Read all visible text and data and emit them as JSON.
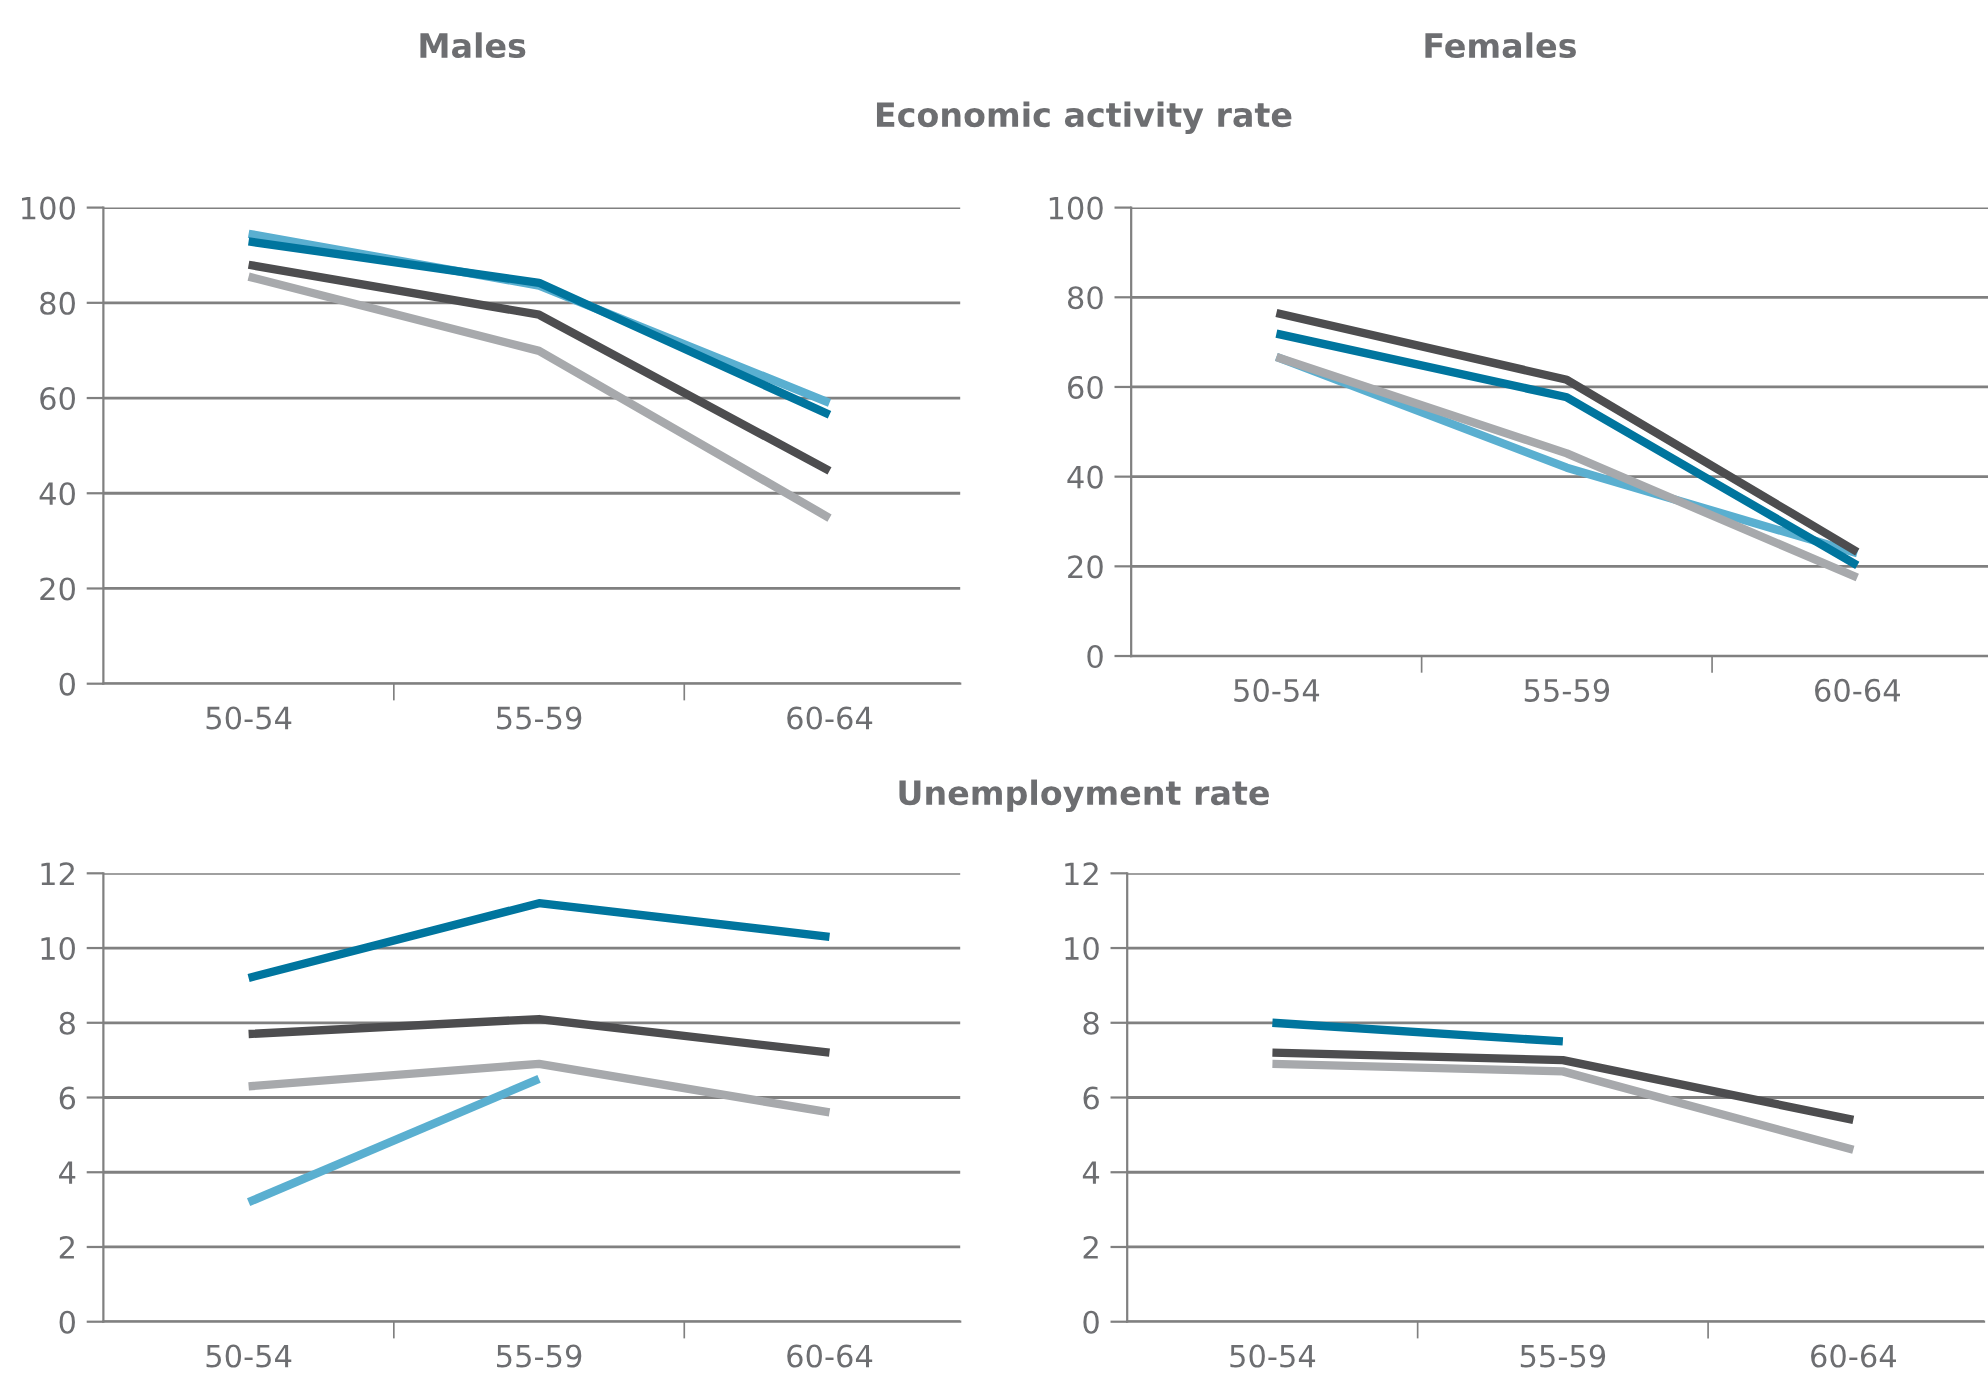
{
  "chart_data": [
    {
      "type": "line",
      "title": "Males",
      "subtitle": "Economic activity rate",
      "categories": [
        "50-54",
        "55-59",
        "60-64"
      ],
      "ylim": [
        0,
        100
      ],
      "yticks": [
        0,
        20,
        40,
        60,
        80,
        100
      ],
      "grid": "y",
      "legend": false,
      "series": [
        {
          "color": "#5aafd0",
          "values": [
            94.5,
            83.6,
            59
          ]
        },
        {
          "color": "#00759e",
          "values": [
            92.9,
            84.2,
            56.5
          ]
        },
        {
          "color": "#4d4d4f",
          "values": [
            88,
            77.5,
            44.7
          ]
        },
        {
          "color": "#a7a9ac",
          "values": [
            85.5,
            69.9,
            34.8
          ]
        }
      ]
    },
    {
      "type": "line",
      "title": "Females",
      "categories": [
        "50-54",
        "55-59",
        "60-64"
      ],
      "ylim": [
        0,
        100
      ],
      "yticks": [
        0,
        20,
        40,
        60,
        80,
        100
      ],
      "grid": "y",
      "legend": false,
      "series": [
        {
          "color": "#5aafd0",
          "values": [
            66.7,
            42,
            22.9
          ]
        },
        {
          "color": "#00759e",
          "values": [
            71.9,
            57.7,
            20.2
          ]
        },
        {
          "color": "#4d4d4f",
          "values": [
            76.5,
            61.6,
            23.2
          ]
        },
        {
          "color": "#a7a9ac",
          "values": [
            66.7,
            45.2,
            17.5
          ]
        }
      ]
    },
    {
      "type": "line",
      "subtitle": "Unemployment rate",
      "categories": [
        "50-54",
        "55-59",
        "60-64"
      ],
      "ylim": [
        0,
        12
      ],
      "yticks": [
        0,
        2,
        4,
        6,
        8,
        10,
        12
      ],
      "grid": "y",
      "legend": false,
      "series": [
        {
          "color": "#5aafd0",
          "values": [
            3.2,
            6.5,
            null
          ]
        },
        {
          "color": "#00759e",
          "values": [
            9.2,
            11.2,
            10.3
          ]
        },
        {
          "color": "#4d4d4f",
          "values": [
            7.7,
            8.1,
            7.2
          ]
        },
        {
          "color": "#a7a9ac",
          "values": [
            6.3,
            6.9,
            5.6
          ]
        }
      ]
    },
    {
      "type": "line",
      "categories": [
        "50-54",
        "55-59",
        "60-64"
      ],
      "ylim": [
        0,
        12
      ],
      "yticks": [
        0,
        2,
        4,
        6,
        8,
        10,
        12
      ],
      "grid": "y",
      "legend": false,
      "series": [
        {
          "color": "#00759e",
          "values": [
            8,
            7.5,
            null
          ]
        },
        {
          "color": "#4d4d4f",
          "values": [
            7.2,
            7,
            5.4
          ]
        },
        {
          "color": "#a7a9ac",
          "values": [
            6.9,
            6.7,
            4.6
          ]
        }
      ]
    }
  ]
}
